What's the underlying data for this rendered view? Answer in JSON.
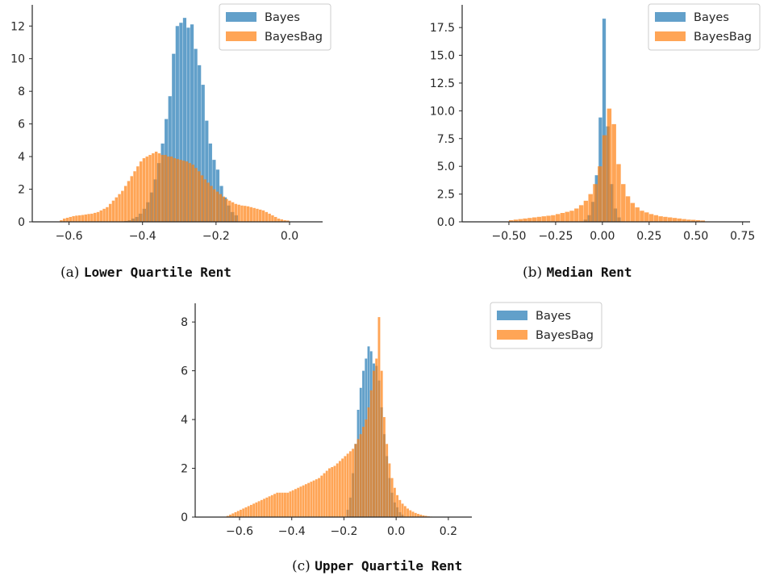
{
  "colors": {
    "bayes": "#1f77b4",
    "bayesbag": "#ff7f0e",
    "axis": "#262626",
    "text": "#262626"
  },
  "legend_labels": [
    "Bayes",
    "BayesBag"
  ],
  "captions": [
    {
      "prefix": "(a)",
      "label": "Lower Quartile Rent"
    },
    {
      "prefix": "(b)",
      "label": "Median Rent"
    },
    {
      "prefix": "(c)",
      "label": "Upper Quartile Rent"
    }
  ],
  "chart_data": [
    {
      "type": "bar",
      "subtype": "histogram",
      "title": "(a) Lower Quartile Rent",
      "xlabel": "",
      "ylabel": "",
      "xlim": [
        -0.7,
        0.09
      ],
      "ylim": [
        0,
        13.2
      ],
      "xticks": [
        -0.6,
        -0.4,
        -0.2,
        0.0
      ],
      "xtick_labels": [
        "−0.6",
        "−0.4",
        "−0.2",
        "0.0"
      ],
      "yticks": [
        0,
        2,
        4,
        6,
        8,
        10,
        12
      ],
      "ytick_labels": [
        "0",
        "2",
        "4",
        "6",
        "8",
        "10",
        "12"
      ],
      "legend": "top-right",
      "grid": false,
      "series": [
        {
          "name": "Bayes",
          "color": "#1f77b4",
          "range": [
            -0.45,
            -0.14
          ],
          "values": [
            0.05,
            0.1,
            0.2,
            0.3,
            0.5,
            0.8,
            1.2,
            1.8,
            2.6,
            3.6,
            4.8,
            6.3,
            7.7,
            10.3,
            12.0,
            12.2,
            12.5,
            11.9,
            12.1,
            10.6,
            9.6,
            8.4,
            6.2,
            4.8,
            3.8,
            3.2,
            2.2,
            1.5,
            1.0,
            0.6,
            0.4
          ]
        },
        {
          "name": "BayesBag",
          "color": "#ff7f0e",
          "range": [
            -0.625,
            0.0
          ],
          "values": [
            0.1,
            0.2,
            0.25,
            0.3,
            0.35,
            0.38,
            0.4,
            0.42,
            0.45,
            0.48,
            0.5,
            0.55,
            0.6,
            0.7,
            0.8,
            0.9,
            1.1,
            1.3,
            1.5,
            1.7,
            1.9,
            2.2,
            2.5,
            2.8,
            3.1,
            3.4,
            3.7,
            3.9,
            4.0,
            4.1,
            4.2,
            4.3,
            4.2,
            4.1,
            4.1,
            4.0,
            4.0,
            3.9,
            3.85,
            3.8,
            3.75,
            3.7,
            3.6,
            3.5,
            3.3,
            3.1,
            2.85,
            2.6,
            2.4,
            2.2,
            2.0,
            1.85,
            1.7,
            1.55,
            1.4,
            1.3,
            1.2,
            1.1,
            1.05,
            1.0,
            0.98,
            0.95,
            0.9,
            0.85,
            0.8,
            0.75,
            0.7,
            0.6,
            0.5,
            0.4,
            0.3,
            0.2,
            0.15,
            0.1,
            0.08
          ]
        }
      ]
    },
    {
      "type": "bar",
      "subtype": "histogram",
      "title": "(b) Median Rent",
      "xlabel": "",
      "ylabel": "",
      "xlim": [
        -0.75,
        0.79
      ],
      "ylim": [
        0,
        19.4
      ],
      "xticks": [
        -0.5,
        -0.25,
        0.0,
        0.25,
        0.5,
        0.75
      ],
      "xtick_labels": [
        "−0.50",
        "−0.25",
        "0.00",
        "0.25",
        "0.50",
        "0.75"
      ],
      "yticks": [
        0,
        2.5,
        5,
        7.5,
        10,
        12.5,
        15,
        17.5
      ],
      "ytick_labels": [
        "0.0",
        "2.5",
        "5.0",
        "7.5",
        "10.0",
        "12.5",
        "15.0",
        "17.5"
      ],
      "legend": "top-right",
      "grid": false,
      "series": [
        {
          "name": "Bayes",
          "color": "#1f77b4",
          "range": [
            -0.1,
            0.1
          ],
          "values": [
            0.2,
            0.6,
            1.8,
            4.2,
            9.4,
            18.3,
            8.6,
            3.4,
            1.2,
            0.4
          ]
        },
        {
          "name": "BayesBag",
          "color": "#ff7f0e",
          "range": [
            -0.5,
            0.55
          ],
          "values": [
            0.15,
            0.2,
            0.25,
            0.3,
            0.35,
            0.4,
            0.45,
            0.5,
            0.55,
            0.6,
            0.7,
            0.8,
            0.9,
            1.0,
            1.2,
            1.5,
            1.9,
            2.5,
            3.4,
            5.0,
            7.8,
            10.2,
            8.8,
            5.2,
            3.4,
            2.3,
            1.7,
            1.3,
            1.0,
            0.85,
            0.7,
            0.6,
            0.5,
            0.45,
            0.4,
            0.35,
            0.3,
            0.25,
            0.2,
            0.18,
            0.15,
            0.12
          ]
        }
      ]
    },
    {
      "type": "bar",
      "subtype": "histogram",
      "title": "(c) Upper Quartile Rent",
      "xlabel": "",
      "ylabel": "",
      "xlim": [
        -0.77,
        0.29
      ],
      "ylim": [
        0,
        8.7
      ],
      "xticks": [
        -0.6,
        -0.4,
        -0.2,
        0.0,
        0.2
      ],
      "xtick_labels": [
        "−0.6",
        "−0.4",
        "−0.2",
        "0.0",
        "0.2"
      ],
      "yticks": [
        0,
        2,
        4,
        6,
        8
      ],
      "ytick_labels": [
        "0",
        "2",
        "4",
        "6",
        "8"
      ],
      "legend": "outside top-right",
      "grid": false,
      "series": [
        {
          "name": "Bayes",
          "color": "#1f77b4",
          "range": [
            -0.19,
            0.03
          ],
          "values": [
            0.3,
            0.8,
            1.8,
            3.0,
            4.4,
            5.3,
            6.0,
            6.5,
            7.0,
            6.8,
            6.3,
            6.2,
            5.6,
            4.5,
            3.4,
            2.5,
            1.6,
            1.0,
            0.6,
            0.4,
            0.2,
            0.1
          ]
        },
        {
          "name": "BayesBag",
          "color": "#ff7f0e",
          "range": [
            -0.65,
            0.18
          ],
          "values": [
            0.05,
            0.1,
            0.15,
            0.2,
            0.25,
            0.3,
            0.35,
            0.4,
            0.45,
            0.5,
            0.55,
            0.6,
            0.65,
            0.7,
            0.75,
            0.8,
            0.85,
            0.9,
            0.95,
            1.0,
            1.0,
            1.0,
            1.0,
            1.0,
            1.05,
            1.1,
            1.15,
            1.2,
            1.25,
            1.3,
            1.35,
            1.4,
            1.45,
            1.5,
            1.55,
            1.6,
            1.7,
            1.8,
            1.9,
            2.0,
            2.05,
            2.1,
            2.2,
            2.3,
            2.4,
            2.5,
            2.6,
            2.7,
            2.8,
            3.0,
            3.2,
            3.4,
            3.7,
            4.0,
            4.5,
            5.2,
            6.0,
            6.5,
            8.2,
            6.0,
            4.1,
            3.0,
            2.2,
            1.6,
            1.2,
            0.9,
            0.7,
            0.55,
            0.45,
            0.35,
            0.28,
            0.22,
            0.17,
            0.13,
            0.1,
            0.07,
            0.05,
            0.03,
            0.02,
            0.01,
            0.01,
            0.01,
            0.01
          ]
        }
      ]
    }
  ]
}
